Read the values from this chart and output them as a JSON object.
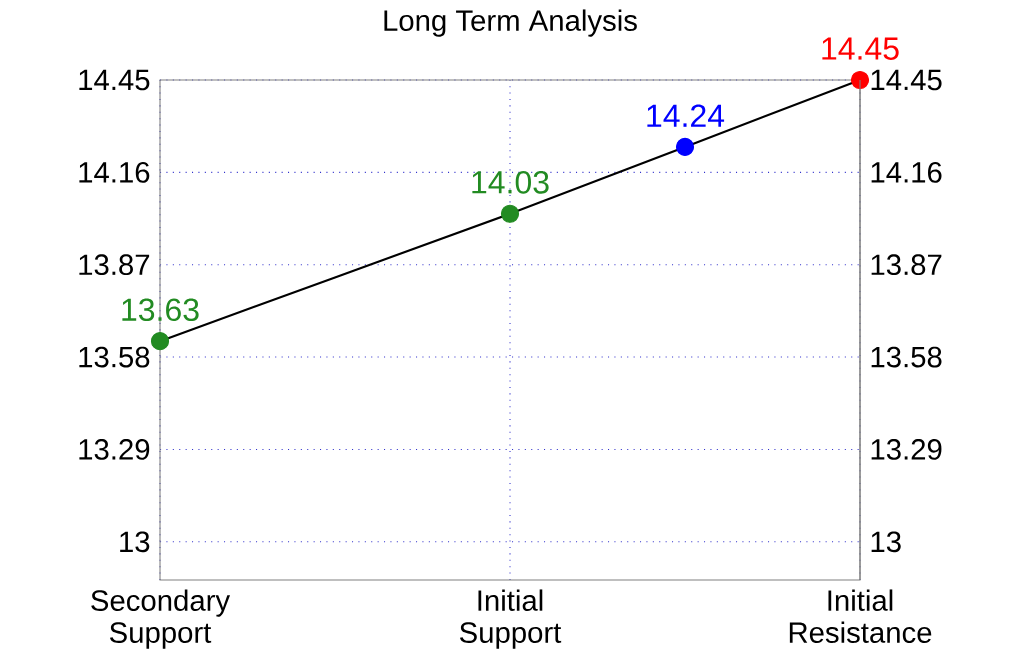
{
  "chart_data": {
    "type": "line",
    "title": "Long Term Analysis",
    "categories": [
      "Secondary Support",
      null,
      "Initial Support",
      null,
      "Initial Resistance"
    ],
    "ylim": [
      12.88,
      14.45
    ],
    "yticks": [
      13,
      13.29,
      13.58,
      13.87,
      14.16,
      14.45
    ],
    "y2lim": [
      12.88,
      14.45
    ],
    "y2ticks": [
      13,
      13.29,
      13.58,
      13.87,
      14.16,
      14.45
    ],
    "grid": true,
    "series": [
      {
        "color": "#000000",
        "values": [
          13.63,
          13.83,
          14.03,
          14.24,
          14.45
        ]
      },
      {
        "type": "scatter",
        "values": [
          13.63,
          null,
          14.03,
          14.24,
          14.45
        ],
        "colors": [
          "#228b22",
          null,
          "#228b22",
          "#0000ff",
          "#ff0000"
        ],
        "marker": "circle",
        "value_labels": [
          "13.63",
          null,
          "14.03",
          "14.24",
          "14.45"
        ]
      }
    ]
  }
}
